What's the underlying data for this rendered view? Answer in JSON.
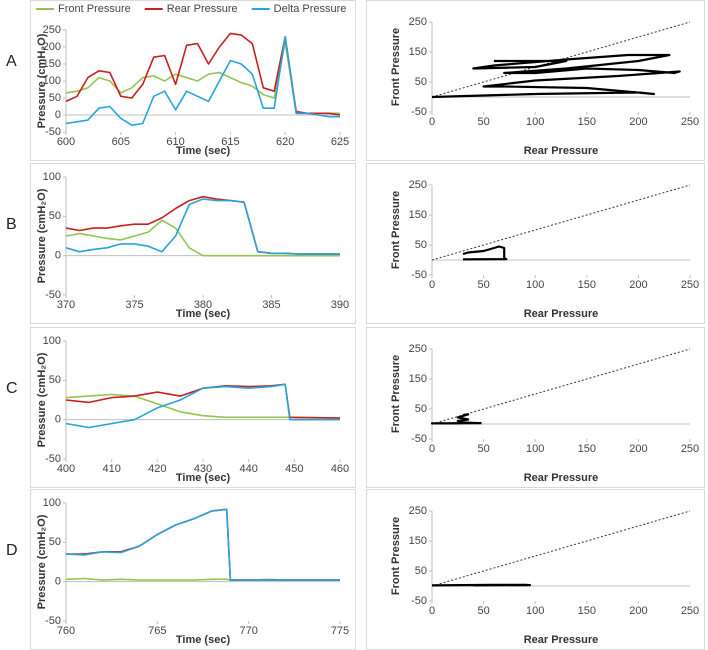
{
  "chart_data": [
    {
      "type": "line",
      "panel": "A",
      "xlabel": "Time (sec)",
      "ylabel": "Pressure (cmH₂O)",
      "legend": true,
      "xlim": [
        600,
        625
      ],
      "xticks": [
        600,
        605,
        610,
        615,
        620,
        625
      ],
      "ylim": [
        -50,
        250
      ],
      "yticks": [
        -50,
        0,
        50,
        100,
        150,
        200,
        250
      ],
      "x": [
        600,
        601,
        602,
        603,
        604,
        605,
        606,
        607,
        608,
        609,
        610,
        611,
        612,
        613,
        614,
        615,
        616,
        617,
        618,
        619,
        620,
        621,
        622,
        623,
        624,
        625
      ],
      "series": [
        {
          "name": "Front Pressure",
          "color": "#92c54f",
          "values": [
            65,
            70,
            80,
            110,
            100,
            65,
            80,
            110,
            115,
            100,
            120,
            110,
            100,
            120,
            125,
            110,
            95,
            85,
            60,
            50,
            215,
            5,
            5,
            5,
            5,
            5
          ]
        },
        {
          "name": "Rear Pressure",
          "color": "#c8201e",
          "values": [
            40,
            55,
            110,
            130,
            125,
            55,
            50,
            90,
            170,
            175,
            90,
            205,
            210,
            150,
            200,
            240,
            235,
            210,
            80,
            70,
            230,
            10,
            5,
            5,
            5,
            0
          ]
        },
        {
          "name": "Delta Pressure",
          "color": "#27a4dc",
          "values": [
            -25,
            -20,
            -15,
            20,
            25,
            -10,
            -30,
            -25,
            55,
            70,
            15,
            70,
            55,
            40,
            100,
            160,
            150,
            120,
            20,
            20,
            230,
            5,
            5,
            0,
            -5,
            -5
          ]
        }
      ]
    },
    {
      "type": "line",
      "panel": "B",
      "xlabel": "Time (sec)",
      "ylabel": "Pressure (cmH₂O)",
      "legend": false,
      "xlim": [
        370,
        390
      ],
      "xticks": [
        370,
        375,
        380,
        385,
        390
      ],
      "ylim": [
        -50,
        100
      ],
      "yticks": [
        -50,
        0,
        50,
        100
      ],
      "x": [
        370,
        371,
        372,
        373,
        374,
        375,
        376,
        377,
        378,
        379,
        380,
        381,
        382,
        383,
        384,
        385,
        386,
        387,
        388,
        389,
        390
      ],
      "series": [
        {
          "color": "#92c54f",
          "values": [
            25,
            28,
            25,
            22,
            20,
            25,
            30,
            45,
            35,
            10,
            0,
            0,
            0,
            0,
            0,
            0,
            0,
            0,
            0,
            0,
            0
          ]
        },
        {
          "color": "#c8201e",
          "values": [
            35,
            32,
            35,
            35,
            38,
            40,
            40,
            48,
            60,
            70,
            75,
            72,
            70,
            68,
            5,
            3,
            3,
            2,
            2,
            2,
            2
          ]
        },
        {
          "color": "#27a4dc",
          "values": [
            10,
            5,
            8,
            10,
            15,
            15,
            12,
            5,
            25,
            65,
            72,
            70,
            70,
            68,
            5,
            3,
            3,
            2,
            2,
            2,
            2
          ]
        }
      ]
    },
    {
      "type": "line",
      "panel": "C",
      "xlabel": "Time (sec)",
      "ylabel": "Pressure (cmH₂O)",
      "legend": false,
      "xlim": [
        400,
        460
      ],
      "xticks": [
        400,
        410,
        420,
        430,
        440,
        450,
        460
      ],
      "ylim": [
        -50,
        100
      ],
      "yticks": [
        -50,
        0,
        50,
        100
      ],
      "x": [
        400,
        405,
        410,
        415,
        420,
        425,
        430,
        435,
        440,
        445,
        448,
        449,
        460
      ],
      "series": [
        {
          "color": "#92c54f",
          "values": [
            28,
            30,
            32,
            30,
            20,
            10,
            5,
            3,
            3,
            3,
            3,
            3,
            2
          ]
        },
        {
          "color": "#c8201e",
          "values": [
            25,
            22,
            28,
            30,
            35,
            30,
            40,
            43,
            42,
            43,
            45,
            3,
            2
          ]
        },
        {
          "color": "#27a4dc",
          "values": [
            -5,
            -10,
            -5,
            0,
            15,
            25,
            40,
            42,
            40,
            42,
            45,
            0,
            0
          ]
        }
      ]
    },
    {
      "type": "line",
      "panel": "D",
      "xlabel": "Time (sec)",
      "ylabel": "Pressure (cmH₂O)",
      "legend": false,
      "xlim": [
        760,
        775
      ],
      "xticks": [
        760,
        765,
        770,
        775
      ],
      "ylim": [
        -50,
        100
      ],
      "yticks": [
        -50,
        0,
        50,
        100
      ],
      "x": [
        760,
        761,
        762,
        763,
        764,
        765,
        766,
        767,
        768,
        768.8,
        769,
        770,
        771,
        772,
        773,
        774,
        775
      ],
      "series": [
        {
          "color": "#92c54f",
          "values": [
            3,
            4,
            2,
            3,
            2,
            2,
            2,
            2,
            3,
            3,
            2,
            2,
            3,
            2,
            2,
            2,
            2
          ]
        },
        {
          "color": "#c8201e",
          "values": [
            35,
            35,
            38,
            38,
            45,
            60,
            72,
            80,
            90,
            92,
            2,
            2,
            2,
            2,
            2,
            2,
            2
          ]
        },
        {
          "color": "#27a4dc",
          "values": [
            35,
            34,
            38,
            37,
            45,
            60,
            72,
            80,
            90,
            92,
            2,
            2,
            2,
            2,
            2,
            2,
            2
          ]
        }
      ]
    },
    {
      "type": "loop",
      "xlabel": "Rear Pressure",
      "ylabel": "Front Pressure",
      "identity_line": true,
      "xlim": [
        0,
        250
      ],
      "xticks": [
        0,
        50,
        100,
        150,
        200,
        250
      ],
      "ylim": [
        -50,
        250
      ],
      "yticks": [
        -50,
        50,
        150,
        250
      ],
      "x": [
        0,
        100,
        200,
        215,
        150,
        70,
        50,
        100,
        180,
        240,
        235,
        200,
        150,
        100,
        70,
        130,
        200,
        230,
        190,
        130,
        60,
        40,
        100,
        130,
        60
      ],
      "series": [
        {
          "color": "#000000",
          "values": [
            0,
            10,
            15,
            10,
            30,
            35,
            35,
            55,
            70,
            85,
            80,
            90,
            95,
            80,
            80,
            95,
            120,
            140,
            140,
            125,
            105,
            95,
            100,
            120,
            120
          ]
        }
      ]
    },
    {
      "type": "loop",
      "xlabel": "Rear Pressure",
      "ylabel": "Front Pressure",
      "identity_line": true,
      "xlim": [
        0,
        250
      ],
      "xticks": [
        0,
        50,
        100,
        150,
        200,
        250
      ],
      "ylim": [
        -50,
        250
      ],
      "yticks": [
        -50,
        50,
        150,
        250
      ],
      "x": [
        30,
        35,
        50,
        65,
        70,
        70,
        72,
        30
      ],
      "series": [
        {
          "color": "#000000",
          "values": [
            20,
            25,
            30,
            45,
            40,
            5,
            3,
            2
          ]
        }
      ]
    },
    {
      "type": "loop",
      "xlabel": "Rear Pressure",
      "ylabel": "Front Pressure",
      "identity_line": true,
      "xlim": [
        0,
        250
      ],
      "xticks": [
        0,
        50,
        100,
        150,
        200,
        250
      ],
      "ylim": [
        -50,
        250
      ],
      "yticks": [
        -50,
        50,
        150,
        250
      ],
      "x": [
        30,
        35,
        25,
        35,
        25,
        30,
        45,
        20,
        0,
        48
      ],
      "series": [
        {
          "color": "#000000",
          "values": [
            30,
            32,
            22,
            15,
            10,
            5,
            3,
            2,
            2,
            3
          ]
        }
      ]
    },
    {
      "type": "loop",
      "xlabel": "Rear Pressure",
      "ylabel": "Front Pressure",
      "identity_line": true,
      "xlim": [
        0,
        250
      ],
      "xticks": [
        0,
        50,
        100,
        150,
        200,
        250
      ],
      "ylim": [
        -50,
        250
      ],
      "yticks": [
        -50,
        50,
        150,
        250
      ],
      "x": [
        0,
        30,
        60,
        90,
        95,
        40
      ],
      "series": [
        {
          "color": "#000000",
          "values": [
            2,
            3,
            4,
            4,
            3,
            2
          ]
        }
      ]
    }
  ]
}
